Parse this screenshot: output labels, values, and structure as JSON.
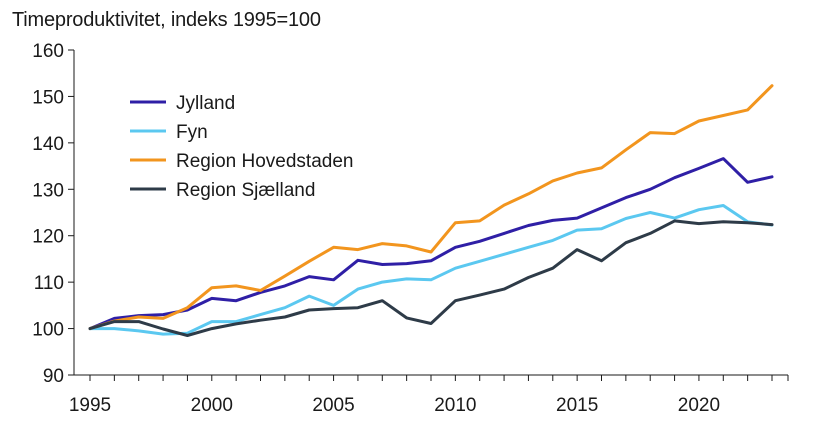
{
  "chart_data": {
    "type": "line",
    "title": "",
    "xlabel": "",
    "ylabel": "Timeproduktivitet, indeks 1995=100",
    "xlim": [
      1995,
      2023
    ],
    "ylim": [
      90,
      160
    ],
    "x_ticks": [
      "1995",
      "2000",
      "2005",
      "2010",
      "2015",
      "2020"
    ],
    "y_ticks": [
      "90",
      "100",
      "110",
      "120",
      "130",
      "140",
      "150",
      "160"
    ],
    "legend_position": "top-left",
    "grid": false,
    "x": [
      1995,
      1996,
      1997,
      1998,
      1999,
      2000,
      2001,
      2002,
      2003,
      2004,
      2005,
      2006,
      2007,
      2008,
      2009,
      2010,
      2011,
      2012,
      2013,
      2014,
      2015,
      2016,
      2017,
      2018,
      2019,
      2020,
      2021,
      2022,
      2023
    ],
    "series": [
      {
        "name": "Jylland",
        "color": "#2f1fa6",
        "values": [
          100,
          102.2,
          102.8,
          103.0,
          104.0,
          106.5,
          106.0,
          107.8,
          109.2,
          111.2,
          110.5,
          114.7,
          113.8,
          114.0,
          114.6,
          117.5,
          118.8,
          120.5,
          122.2,
          123.3,
          123.8,
          126.0,
          128.2,
          130.0,
          132.5,
          134.5,
          136.6,
          131.5,
          132.7
        ]
      },
      {
        "name": "Fyn",
        "color": "#5bc8f0",
        "values": [
          100,
          100.0,
          99.5,
          98.8,
          99.0,
          101.5,
          101.5,
          103.0,
          104.5,
          107.0,
          105.0,
          108.5,
          110.0,
          110.7,
          110.5,
          113.0,
          114.5,
          116.0,
          117.5,
          119.0,
          121.2,
          121.5,
          123.7,
          125.0,
          123.8,
          125.6,
          126.5,
          123.0,
          122.3
        ]
      },
      {
        "name": "Region Hovedstaden",
        "color": "#f2951e",
        "values": [
          100,
          101.6,
          102.5,
          102.2,
          104.5,
          108.8,
          109.2,
          108.2,
          111.3,
          114.5,
          117.5,
          117.0,
          118.3,
          117.8,
          116.5,
          122.8,
          123.2,
          126.6,
          129.0,
          131.8,
          133.5,
          134.6,
          138.5,
          142.2,
          142.0,
          144.7,
          145.9,
          147.1,
          152.3
        ]
      },
      {
        "name": "Region Sjælland",
        "color": "#2e3b48",
        "values": [
          100,
          101.5,
          101.5,
          99.9,
          98.5,
          100.0,
          101.0,
          101.8,
          102.5,
          104.0,
          104.3,
          104.5,
          106.0,
          102.3,
          101.1,
          106.0,
          107.2,
          108.5,
          111.0,
          113.0,
          117.0,
          114.6,
          118.5,
          120.5,
          123.2,
          122.6,
          123.0,
          122.8,
          122.4
        ]
      }
    ]
  }
}
